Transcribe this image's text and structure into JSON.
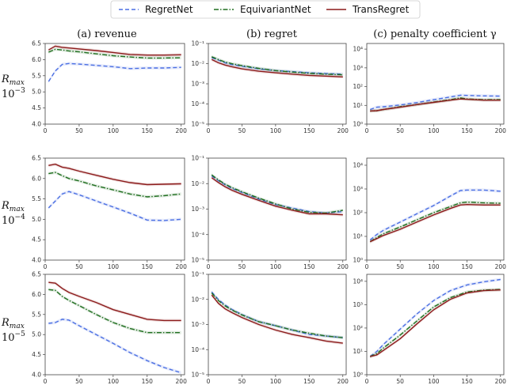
{
  "legend": [
    {
      "name": "RegretNet",
      "color": "#4a6fe3",
      "dash": "dashed"
    },
    {
      "name": "EquivariantNet",
      "color": "#1f6e1f",
      "dash": "dashdot"
    },
    {
      "name": "TransRegret",
      "color": "#8b1a1a",
      "dash": "solid"
    }
  ],
  "column_titles": [
    "(a) revenue",
    "(b) regret",
    "(c) penalty coefficient γ"
  ],
  "row_labels": [
    {
      "top": "R",
      "sub": "max",
      "base": "10",
      "exp": "−3"
    },
    {
      "top": "R",
      "sub": "max",
      "base": "10",
      "exp": "−4"
    },
    {
      "top": "R",
      "sub": "max",
      "base": "10",
      "exp": "−5"
    }
  ],
  "chart_data": [
    {
      "type": "line",
      "row": 0,
      "col": 0,
      "yscale": "linear",
      "xlim": [
        0,
        205
      ],
      "ylim": [
        4.0,
        6.5
      ],
      "xticks": [
        "0",
        "50",
        "100",
        "150",
        "200"
      ],
      "yticks": [
        "4.0",
        "4.5",
        "5.0",
        "5.5",
        "6.0",
        "6.5"
      ],
      "x": [
        5,
        15,
        25,
        35,
        50,
        75,
        100,
        125,
        150,
        175,
        200
      ],
      "series": [
        {
          "name": "RegretNet",
          "values": [
            5.32,
            5.65,
            5.85,
            5.88,
            5.86,
            5.82,
            5.78,
            5.72,
            5.74,
            5.74,
            5.76
          ]
        },
        {
          "name": "EquivariantNet",
          "values": [
            6.23,
            6.32,
            6.3,
            6.27,
            6.24,
            6.18,
            6.12,
            6.08,
            6.05,
            6.05,
            6.06
          ]
        },
        {
          "name": "TransRegret",
          "values": [
            6.3,
            6.42,
            6.38,
            6.36,
            6.33,
            6.28,
            6.22,
            6.16,
            6.14,
            6.14,
            6.15
          ]
        }
      ]
    },
    {
      "type": "line",
      "row": 0,
      "col": 1,
      "yscale": "log",
      "xlim": [
        0,
        205
      ],
      "ylim": [
        -5,
        -1
      ],
      "xticks": [
        "0",
        "50",
        "100",
        "150",
        "200"
      ],
      "yticks": [
        "10⁻⁵",
        "10⁻⁴",
        "10⁻³",
        "10⁻²",
        "10⁻¹"
      ],
      "x": [
        5,
        15,
        25,
        35,
        50,
        75,
        100,
        125,
        150,
        175,
        200
      ],
      "series": [
        {
          "name": "RegretNet",
          "values": [
            0.02,
            0.015,
            0.011,
            0.009,
            0.0075,
            0.0055,
            0.0045,
            0.004,
            0.0035,
            0.0032,
            0.003
          ]
        },
        {
          "name": "EquivariantNet",
          "values": [
            0.022,
            0.016,
            0.012,
            0.01,
            0.008,
            0.0058,
            0.0045,
            0.0038,
            0.0033,
            0.003,
            0.0028
          ]
        },
        {
          "name": "TransRegret",
          "values": [
            0.016,
            0.011,
            0.0085,
            0.007,
            0.0055,
            0.0042,
            0.0035,
            0.003,
            0.0026,
            0.0024,
            0.0022
          ]
        }
      ]
    },
    {
      "type": "line",
      "row": 0,
      "col": 2,
      "yscale": "log",
      "xlim": [
        0,
        205
      ],
      "ylim": [
        0,
        4.3
      ],
      "xticks": [
        "0",
        "50",
        "100",
        "150",
        "200"
      ],
      "yticks": [
        "10⁰",
        "10¹",
        "10²",
        "10³",
        "10⁴"
      ],
      "x": [
        5,
        15,
        25,
        50,
        75,
        100,
        125,
        140,
        150,
        175,
        200
      ],
      "series": [
        {
          "name": "RegretNet",
          "values": [
            6,
            8,
            8.5,
            10.5,
            14,
            20,
            28,
            35,
            34,
            32,
            31
          ]
        },
        {
          "name": "EquivariantNet",
          "values": [
            5,
            5.2,
            6,
            8.5,
            11,
            15,
            20,
            25,
            22,
            20,
            20
          ]
        },
        {
          "name": "TransRegret",
          "values": [
            5,
            5.2,
            6,
            8,
            11,
            14.5,
            19,
            22,
            21,
            19,
            19
          ]
        }
      ]
    },
    {
      "type": "line",
      "row": 1,
      "col": 0,
      "yscale": "linear",
      "xlim": [
        0,
        205
      ],
      "ylim": [
        4.0,
        6.5
      ],
      "xticks": [
        "0",
        "50",
        "100",
        "150",
        "200"
      ],
      "yticks": [
        "4.0",
        "4.5",
        "5.0",
        "5.5",
        "6.0",
        "6.5"
      ],
      "x": [
        5,
        15,
        25,
        35,
        50,
        75,
        100,
        125,
        150,
        175,
        200
      ],
      "series": [
        {
          "name": "RegretNet",
          "values": [
            5.28,
            5.45,
            5.62,
            5.68,
            5.6,
            5.45,
            5.3,
            5.15,
            4.98,
            4.97,
            5.0
          ]
        },
        {
          "name": "EquivariantNet",
          "values": [
            6.12,
            6.15,
            6.07,
            6.0,
            5.94,
            5.82,
            5.72,
            5.62,
            5.55,
            5.58,
            5.62
          ]
        },
        {
          "name": "TransRegret",
          "values": [
            6.32,
            6.35,
            6.28,
            6.25,
            6.18,
            6.08,
            5.98,
            5.9,
            5.85,
            5.86,
            5.87
          ]
        }
      ]
    },
    {
      "type": "line",
      "row": 1,
      "col": 1,
      "yscale": "log",
      "xlim": [
        0,
        205
      ],
      "ylim": [
        -5,
        -1
      ],
      "xticks": [
        "0",
        "50",
        "100",
        "150",
        "200"
      ],
      "yticks": [
        "10⁻⁵",
        "10⁻⁴",
        "10⁻³",
        "10⁻²",
        "10⁻¹"
      ],
      "x": [
        5,
        15,
        25,
        35,
        50,
        75,
        100,
        125,
        150,
        175,
        200
      ],
      "series": [
        {
          "name": "RegretNet",
          "values": [
            0.02,
            0.013,
            0.009,
            0.0065,
            0.0045,
            0.0025,
            0.0015,
            0.0011,
            0.0008,
            0.0007,
            0.0008
          ]
        },
        {
          "name": "EquivariantNet",
          "values": [
            0.022,
            0.014,
            0.0095,
            0.007,
            0.0048,
            0.0027,
            0.0016,
            0.001,
            0.00075,
            0.0007,
            0.0009
          ]
        },
        {
          "name": "TransRegret",
          "values": [
            0.017,
            0.011,
            0.0075,
            0.0055,
            0.0038,
            0.0022,
            0.0013,
            0.0009,
            0.00065,
            0.00065,
            0.0006
          ]
        }
      ]
    },
    {
      "type": "line",
      "row": 1,
      "col": 2,
      "yscale": "log",
      "xlim": [
        0,
        205
      ],
      "ylim": [
        0,
        4.3
      ],
      "xticks": [
        "0",
        "50",
        "100",
        "150",
        "200"
      ],
      "yticks": [
        "10⁰",
        "10¹",
        "10²",
        "10³",
        "10⁴"
      ],
      "x": [
        5,
        15,
        25,
        50,
        75,
        100,
        125,
        140,
        150,
        175,
        200
      ],
      "series": [
        {
          "name": "RegretNet",
          "values": [
            7,
            12,
            18,
            40,
            90,
            200,
            500,
            850,
            900,
            900,
            800
          ]
        },
        {
          "name": "EquivariantNet",
          "values": [
            6,
            9,
            13,
            25,
            50,
            100,
            180,
            260,
            280,
            260,
            250
          ]
        },
        {
          "name": "TransRegret",
          "values": [
            6,
            8,
            11,
            20,
            40,
            80,
            150,
            210,
            220,
            210,
            210
          ]
        }
      ]
    },
    {
      "type": "line",
      "row": 2,
      "col": 0,
      "yscale": "linear",
      "xlim": [
        0,
        205
      ],
      "ylim": [
        4.0,
        6.5
      ],
      "xticks": [
        "0",
        "50",
        "100",
        "150",
        "200"
      ],
      "yticks": [
        "4.0",
        "4.5",
        "5.0",
        "5.5",
        "6.0",
        "6.5"
      ],
      "x": [
        5,
        15,
        25,
        35,
        50,
        75,
        100,
        125,
        150,
        175,
        200
      ],
      "series": [
        {
          "name": "RegretNet",
          "values": [
            5.28,
            5.3,
            5.38,
            5.36,
            5.22,
            5.0,
            4.78,
            4.55,
            4.35,
            4.18,
            4.05
          ]
        },
        {
          "name": "EquivariantNet",
          "values": [
            6.12,
            6.1,
            5.95,
            5.85,
            5.72,
            5.5,
            5.3,
            5.15,
            5.05,
            5.05,
            5.05
          ]
        },
        {
          "name": "TransRegret",
          "values": [
            6.3,
            6.28,
            6.15,
            6.05,
            5.95,
            5.8,
            5.62,
            5.5,
            5.38,
            5.35,
            5.35
          ]
        }
      ]
    },
    {
      "type": "line",
      "row": 2,
      "col": 1,
      "yscale": "log",
      "xlim": [
        0,
        205
      ],
      "ylim": [
        -5,
        -1
      ],
      "xticks": [
        "0",
        "50",
        "100",
        "150",
        "200"
      ],
      "yticks": [
        "10⁻⁵",
        "10⁻⁴",
        "10⁻³",
        "10⁻²",
        "10⁻¹"
      ],
      "x": [
        5,
        15,
        25,
        35,
        50,
        75,
        100,
        125,
        150,
        175,
        200
      ],
      "series": [
        {
          "name": "RegretNet",
          "values": [
            0.02,
            0.01,
            0.006,
            0.004,
            0.0025,
            0.0013,
            0.0009,
            0.0006,
            0.0004,
            0.00035,
            0.0003
          ]
        },
        {
          "name": "EquivariantNet",
          "values": [
            0.018,
            0.009,
            0.0055,
            0.0038,
            0.0024,
            0.0013,
            0.0009,
            0.0006,
            0.00045,
            0.00035,
            0.0003
          ]
        },
        {
          "name": "TransRegret",
          "values": [
            0.015,
            0.007,
            0.0042,
            0.003,
            0.0019,
            0.001,
            0.0006,
            0.0004,
            0.0003,
            0.00022,
            0.00018
          ]
        }
      ]
    },
    {
      "type": "line",
      "row": 2,
      "col": 2,
      "yscale": "log",
      "xlim": [
        0,
        205
      ],
      "ylim": [
        0,
        4.3
      ],
      "xticks": [
        "0",
        "50",
        "100",
        "150",
        "200"
      ],
      "yticks": [
        "10⁰",
        "10¹",
        "10²",
        "10³",
        "10⁴"
      ],
      "x": [
        5,
        15,
        25,
        50,
        75,
        100,
        125,
        150,
        175,
        200
      ],
      "series": [
        {
          "name": "RegretNet",
          "values": [
            6,
            10,
            20,
            90,
            400,
            1500,
            4000,
            7000,
            9500,
            12000
          ]
        },
        {
          "name": "EquivariantNet",
          "values": [
            6,
            8,
            14,
            50,
            200,
            800,
            2000,
            3500,
            4200,
            4500
          ]
        },
        {
          "name": "TransRegret",
          "values": [
            6,
            7,
            11,
            35,
            150,
            600,
            1700,
            3200,
            4000,
            4300
          ]
        }
      ]
    }
  ]
}
